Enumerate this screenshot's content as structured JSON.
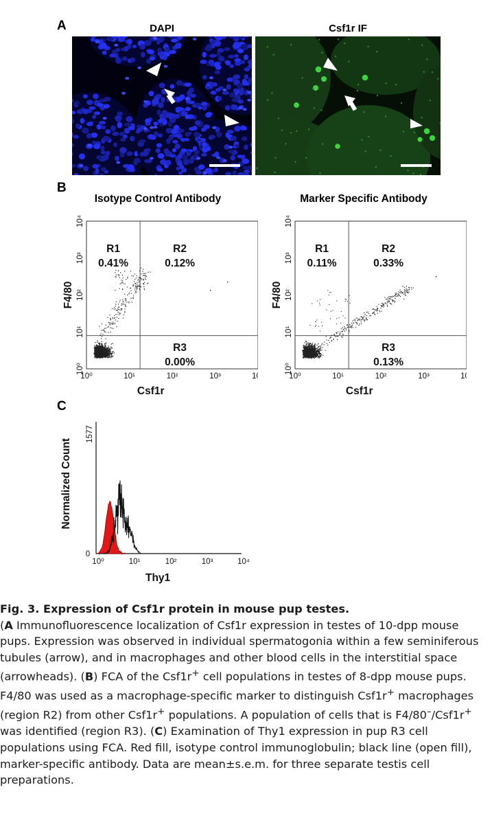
{
  "panel_a": {
    "letter": "A",
    "dapi_title": "DAPI",
    "csf1r_title": "Csf1r IF",
    "dapi_color": "#1414d8",
    "csf1r_color": "#2aa82a"
  },
  "panel_b": {
    "letter": "B",
    "ticks": [
      "10⁰",
      "10¹",
      "10²",
      "10³",
      "10⁴"
    ],
    "plots": [
      {
        "title": "Isotype Control Antibody",
        "xlabel": "Csf1r",
        "ylabel": "F4/80",
        "r1_label": "R1",
        "r1_value": "0.41%",
        "r2_label": "R2",
        "r2_value": "0.12%",
        "r3_label": "R3",
        "r3_value": "0.00%"
      },
      {
        "title": "Marker Specific Antibody",
        "xlabel": "Csf1r",
        "ylabel": "F4/80",
        "r1_label": "R1",
        "r1_value": "0.11%",
        "r2_label": "R2",
        "r2_value": "0.33%",
        "r3_label": "R3",
        "r3_value": "0.13%"
      }
    ]
  },
  "panel_c": {
    "letter": "C",
    "ylabel": "Normalized Count",
    "y_max_label": "1577",
    "y_min_label": "0",
    "ticks": [
      "10⁰",
      "10¹",
      "10²",
      "10³",
      "10⁴"
    ],
    "xlabel": "Thy1",
    "fill_color": "#e01818"
  },
  "caption": {
    "title": "Fig. 3. Expression of Csf1r protein in mouse pup testes.",
    "a_letter": "A",
    "a_text": " Immunofluorescence localization of Csf1r expression in testes of 10-dpp mouse pups. Expression was observed in individual spermatogonia within a few seminiferous tubules (arrow), and in macrophages and other blood cells in the interstitial space (arrowheads). (",
    "b_letter": "B",
    "b_text_1": " FCA of the Csf1r",
    "plus_1": "+",
    "b_text_2": " cell populations in testes of 8-dpp mouse pups. F4/80 was used as a macrophage-specific marker to distinguish Csf1r",
    "plus_2": "+",
    "b_text_3": " macrophages (region R2) from other Csf1r",
    "plus_3": "+",
    "b_text_4": " populations. A population of cells that is F4/80",
    "minus_1": "–",
    "b_text_5": "/Csf1r",
    "plus_4": "+",
    "b_text_6": " was identified (region R3). (",
    "c_letter": "C",
    "c_text": " Examination of Thy1 expression in pup R3 cell populations using FCA. Red fill, isotype control immunoglobulin; black line (open fill), marker-specific antibody. Data are mean±s.e.m. for three separate testis cell preparations."
  }
}
